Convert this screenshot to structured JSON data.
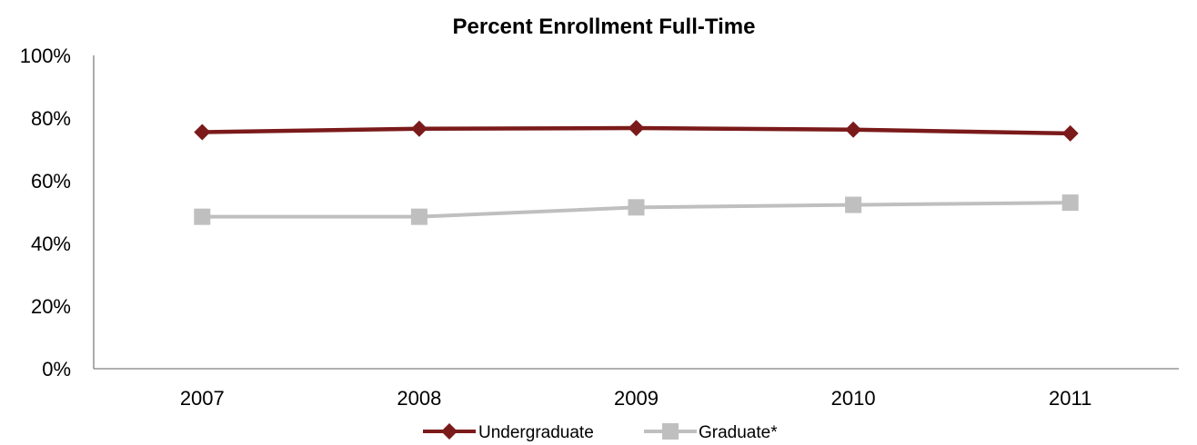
{
  "chart_data": {
    "type": "line",
    "title": "Percent Enrollment Full-Time",
    "xlabel": "",
    "ylabel": "",
    "categories": [
      "2007",
      "2008",
      "2009",
      "2010",
      "2011"
    ],
    "ylim": [
      0,
      100
    ],
    "yticks": [
      "0%",
      "20%",
      "40%",
      "60%",
      "80%",
      "100%"
    ],
    "grid": false,
    "legend_position": "bottom",
    "series": [
      {
        "name": "Undergraduate",
        "values": [
          75.5,
          76.6,
          76.8,
          76.3,
          75.1
        ],
        "color": "#7b1a1a",
        "marker": "diamond"
      },
      {
        "name": "Graduate*",
        "values": [
          48.5,
          48.5,
          51.5,
          52.3,
          53.0
        ],
        "color": "#bfbfbf",
        "marker": "square"
      }
    ]
  }
}
